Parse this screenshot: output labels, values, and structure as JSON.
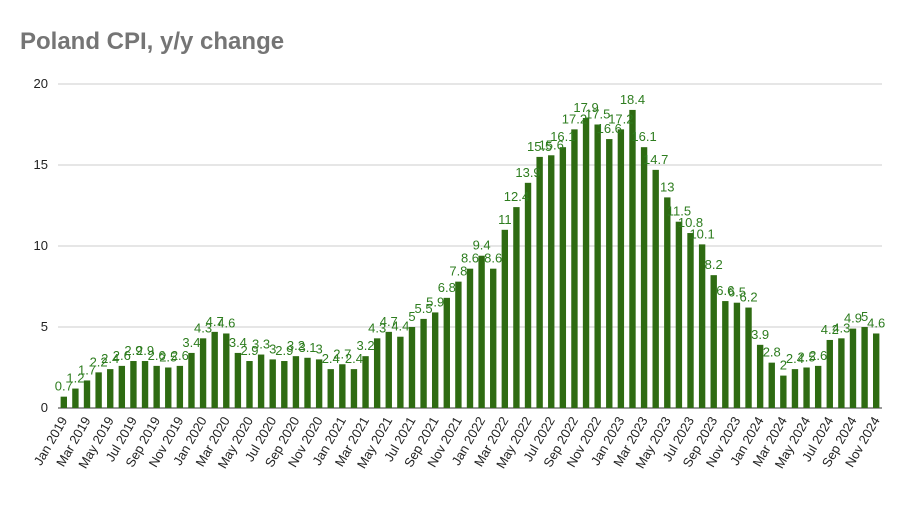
{
  "chart_data": {
    "type": "bar",
    "title": "Poland CPI, y/y change",
    "xlabel": "",
    "ylabel": "",
    "ylim": [
      0,
      20
    ],
    "yticks": [
      0,
      5,
      10,
      15,
      20
    ],
    "grid": true,
    "bar_color": "#2e6b12",
    "label_color": "#3a8a22",
    "categories": [
      "Jan 2019",
      "Feb 2019",
      "Mar 2019",
      "Apr 2019",
      "May 2019",
      "Jun 2019",
      "Jul 2019",
      "Aug 2019",
      "Sep 2019",
      "Oct 2019",
      "Nov 2019",
      "Dec 2019",
      "Jan 2020",
      "Feb 2020",
      "Mar 2020",
      "Apr 2020",
      "May 2020",
      "Jun 2020",
      "Jul 2020",
      "Aug 2020",
      "Sep 2020",
      "Oct 2020",
      "Nov 2020",
      "Dec 2020",
      "Jan 2021",
      "Feb 2021",
      "Mar 2021",
      "Apr 2021",
      "May 2021",
      "Jun 2021",
      "Jul 2021",
      "Aug 2021",
      "Sep 2021",
      "Oct 2021",
      "Nov 2021",
      "Dec 2021",
      "Jan 2022",
      "Feb 2022",
      "Mar 2022",
      "Apr 2022",
      "May 2022",
      "Jun 2022",
      "Jul 2022",
      "Aug 2022",
      "Sep 2022",
      "Oct 2022",
      "Nov 2022",
      "Dec 2022",
      "Jan 2023",
      "Feb 2023",
      "Mar 2023",
      "Apr 2023",
      "May 2023",
      "Jun 2023",
      "Jul 2023",
      "Aug 2023",
      "Sep 2023",
      "Oct 2023",
      "Nov 2023",
      "Dec 2023",
      "Jan 2024",
      "Feb 2024",
      "Mar 2024",
      "Apr 2024",
      "May 2024",
      "Jun 2024",
      "Jul 2024",
      "Aug 2024",
      "Sep 2024",
      "Oct 2024",
      "Nov 2024"
    ],
    "x_tick_labels": [
      "Jan 2019",
      "Mar 2019",
      "May 2019",
      "Jul 2019",
      "Sep 2019",
      "Nov 2019",
      "Jan 2020",
      "Mar 2020",
      "May 2020",
      "Jul 2020",
      "Sep 2020",
      "Nov 2020",
      "Jan 2021",
      "Mar 2021",
      "May 2021",
      "Jul 2021",
      "Sep 2021",
      "Nov 2021",
      "Jan 2022",
      "Mar 2022",
      "May 2022",
      "Jul 2022",
      "Sep 2022",
      "Nov 2022",
      "Jan 2023",
      "Mar 2023",
      "May 2023",
      "Jul 2023",
      "Sep 2023",
      "Nov 2023",
      "Jan 2024",
      "Mar 2024",
      "May 2024",
      "Jul 2024",
      "Sep 2024",
      "Nov 2024"
    ],
    "values": [
      0.7,
      1.2,
      1.7,
      2.2,
      2.4,
      2.6,
      2.9,
      2.9,
      2.6,
      2.5,
      2.6,
      3.4,
      4.3,
      4.7,
      4.6,
      3.4,
      2.9,
      3.3,
      3.0,
      2.9,
      3.2,
      3.1,
      3.0,
      2.4,
      2.7,
      2.4,
      3.2,
      4.3,
      4.7,
      4.4,
      5.0,
      5.5,
      5.9,
      6.8,
      7.8,
      8.6,
      9.4,
      8.6,
      11.0,
      12.4,
      13.9,
      15.5,
      15.6,
      16.1,
      17.2,
      17.9,
      17.5,
      16.6,
      17.2,
      18.4,
      16.1,
      14.7,
      13.0,
      11.5,
      10.8,
      10.1,
      8.2,
      6.6,
      6.5,
      6.2,
      3.9,
      2.8,
      2.0,
      2.4,
      2.5,
      2.6,
      4.2,
      4.3,
      4.9,
      5.0,
      4.6
    ]
  }
}
